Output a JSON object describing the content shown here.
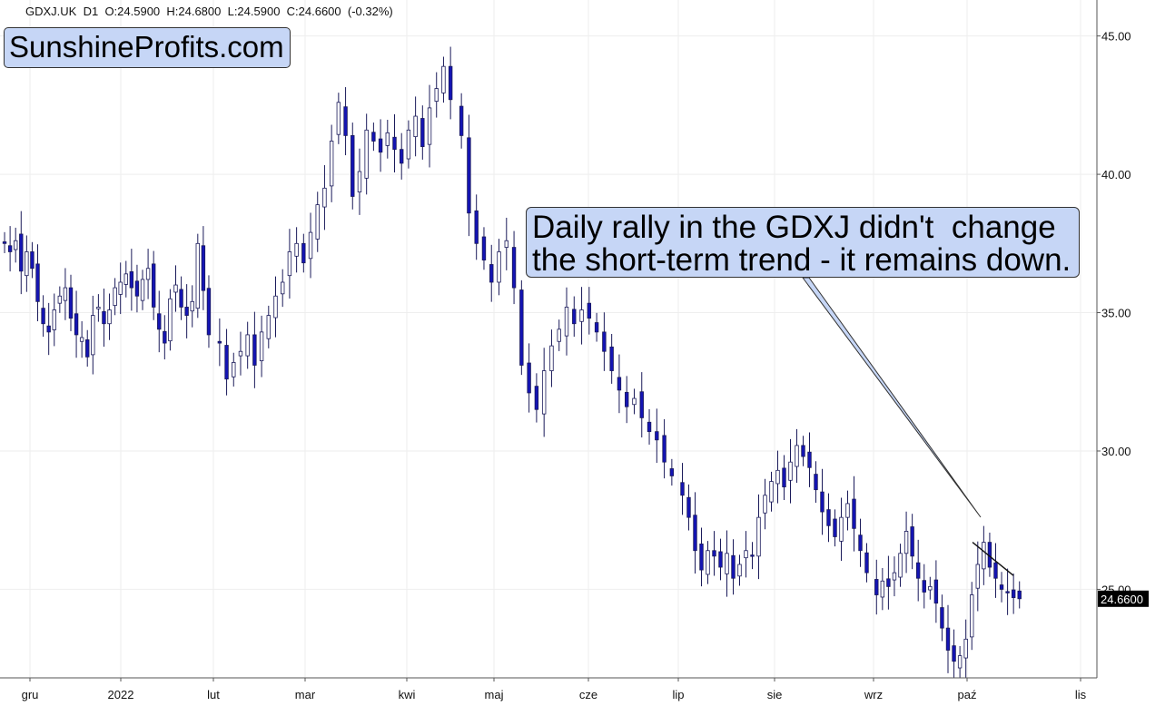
{
  "header": {
    "symbol": "GDXJ.UK",
    "timeframe": "D1",
    "ohlc_text": "O:24.5900  H:24.6800  L:24.5900  C:24.6600  (-0.32%)"
  },
  "brand": "SunshineProfits.com",
  "annotation": {
    "line1": "Daily rally in the GDXJ didn't  change",
    "line2": "the short-term trend - it remains down."
  },
  "colors": {
    "bear_candle": "#1414b4",
    "bull_candle": "#ffffff",
    "candle_outline": "#1a1a5a",
    "callout_fill": "#c6d6f6",
    "grid": "#eeeeee",
    "last_price_bg": "#000000"
  },
  "chart_data": {
    "type": "candlestick",
    "title": "",
    "y_axis": {
      "position": "right",
      "ylim": [
        21.8,
        46.3
      ],
      "ticks": [
        25,
        30,
        35,
        40,
        45
      ],
      "tick_labels": [
        "25.00",
        "30.00",
        "35.00",
        "40.00",
        "45.00"
      ]
    },
    "x_axis": {
      "labels": [
        "gru",
        "2022",
        "lut",
        "mar",
        "kwi",
        "maj",
        "cze",
        "lip",
        "sie",
        "wrz",
        "paź",
        "lis"
      ]
    },
    "last_price": 24.66,
    "last_price_label": "24.6600",
    "grid": true,
    "trend_line": {
      "from": [
        "paź",
        26.7
      ],
      "to": [
        "paź",
        25.5
      ]
    },
    "series": [
      {
        "segment": "gru-lut",
        "closes": [
          37.5,
          37.2,
          37.6,
          36.5,
          37.2,
          36.6,
          35.4,
          34.6,
          34.3,
          35.1,
          35.6,
          35.9,
          34.8,
          34.2,
          34.1,
          33.4,
          34.9,
          35.2,
          34.6,
          35.1,
          35.9,
          36.1,
          36.4,
          35.9,
          35.6,
          36.2,
          36.6,
          35.2,
          34.4,
          33.9,
          35.5,
          36.0,
          35.2,
          34.9,
          35.4,
          37.5,
          35.8,
          34.2
        ]
      },
      {
        "segment": "lut-kwi",
        "closes": [
          33.9,
          32.6,
          33.2,
          33.6,
          34.2,
          33.1,
          34.3,
          34.9,
          35.6,
          36.1,
          37.2,
          37.5,
          36.8,
          37.9,
          38.9,
          39.5,
          41.2,
          42.6,
          41.4,
          39.2,
          40.1,
          41.6,
          41.2,
          40.8,
          41.5,
          40.9,
          40.4,
          41.6,
          42.1,
          41.0,
          42.4,
          43.1,
          43.9,
          42.7
        ]
      },
      {
        "segment": "kwi-lip",
        "closes": [
          41.4,
          38.6,
          37.5,
          36.9,
          36.1,
          37.2,
          37.6,
          35.9,
          33.1,
          32.1,
          31.5,
          32.9,
          33.8,
          34.4,
          35.2,
          34.6,
          35.1,
          34.8,
          34.3,
          33.6,
          32.9,
          32.2,
          31.6,
          31.9,
          31.2,
          30.7,
          30.4,
          29.6,
          29.1
        ]
      },
      {
        "segment": "lip-wrz",
        "closes": [
          28.4,
          27.6,
          26.4,
          25.7,
          26.4,
          26.2,
          25.8,
          26.3,
          25.4,
          25.9,
          26.4,
          26.2,
          27.6,
          28.4,
          28.9,
          29.3,
          28.7,
          29.6,
          30.2,
          29.8,
          29.4,
          28.6,
          27.8,
          27.3,
          26.9,
          27.6,
          28.1,
          27.2,
          26.4,
          25.6
        ]
      },
      {
        "segment": "wrz-paź",
        "closes": [
          24.8,
          25.3,
          25.1,
          25.6,
          26.3,
          27.1,
          26.2,
          25.4,
          24.9,
          25.1,
          24.5,
          23.6,
          22.8,
          22.4,
          22.6,
          23.2,
          24.8,
          25.9,
          26.7,
          25.8,
          25.4,
          25.0,
          24.9,
          24.7,
          24.66
        ]
      }
    ]
  }
}
